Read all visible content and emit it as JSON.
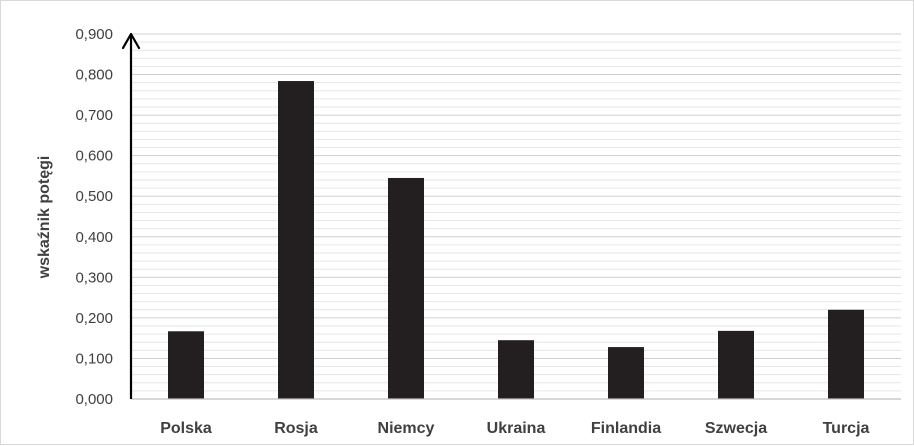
{
  "chart_data": {
    "type": "bar",
    "title": "",
    "xlabel": "",
    "ylabel": "wskaźnik potęgi",
    "categories": [
      "Polska",
      "Rosja",
      "Niemcy",
      "Ukraina",
      "Finlandia",
      "Szwecja",
      "Turcja"
    ],
    "values": [
      0.167,
      0.784,
      0.545,
      0.145,
      0.128,
      0.168,
      0.22
    ],
    "ylim": [
      0,
      0.9
    ],
    "yticks": [
      0,
      0.1,
      0.2,
      0.3,
      0.4,
      0.5,
      0.6,
      0.7,
      0.8,
      0.9
    ],
    "ytick_labels": [
      "0,000",
      "0,100",
      "0,200",
      "0,300",
      "0,400",
      "0,500",
      "0,600",
      "0,700",
      "0,800",
      "0,900"
    ],
    "grid": true,
    "minor_grid": true,
    "legend": "none",
    "colors": {
      "bar": "#231f20",
      "grid_major": "#d0d0d0",
      "grid_minor": "#e6e6e6",
      "axis": "#000000",
      "text": "#404040"
    }
  }
}
